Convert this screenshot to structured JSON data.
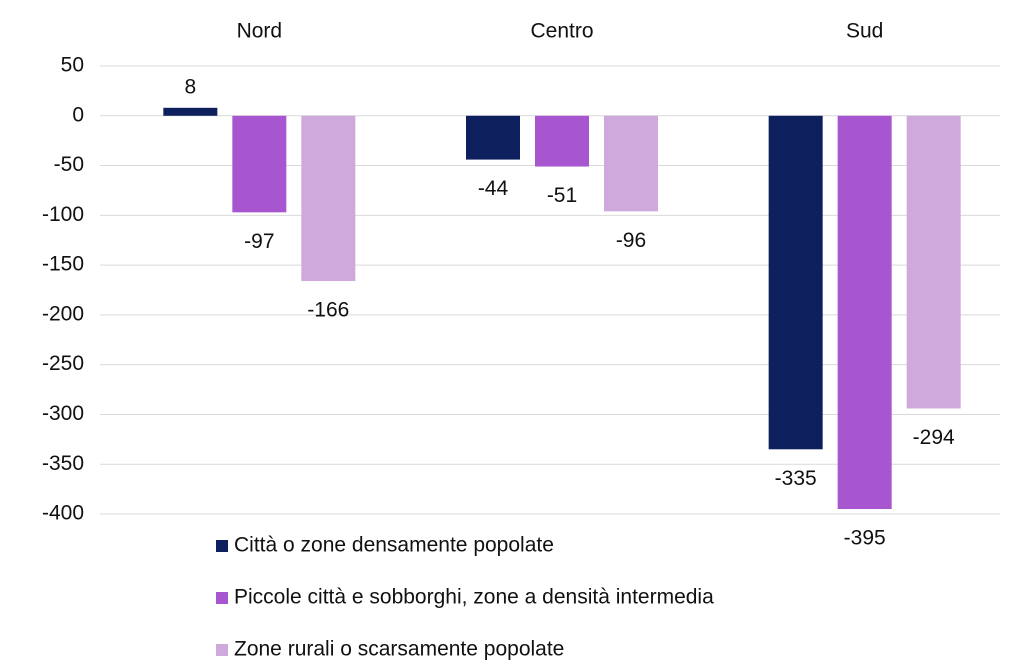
{
  "chart_data": {
    "type": "bar",
    "categories": [
      "Nord",
      "Centro",
      "Sud"
    ],
    "series": [
      {
        "name": "Città o zone densamente popolate",
        "color": "#0d1f5c",
        "values": [
          8,
          -44,
          -335
        ]
      },
      {
        "name": "Piccole città e sobborghi, zone a densità intermedia",
        "color": "#a855d0",
        "values": [
          -97,
          -51,
          -395
        ]
      },
      {
        "name": "Zone rurali o scarsamente popolate",
        "color": "#cfa8dc",
        "values": [
          -166,
          -96,
          -294
        ]
      }
    ],
    "ylim": [
      -400,
      50
    ],
    "yticks": [
      50,
      0,
      -50,
      -100,
      -150,
      -200,
      -250,
      -300,
      -350,
      -400
    ],
    "grid": true
  }
}
